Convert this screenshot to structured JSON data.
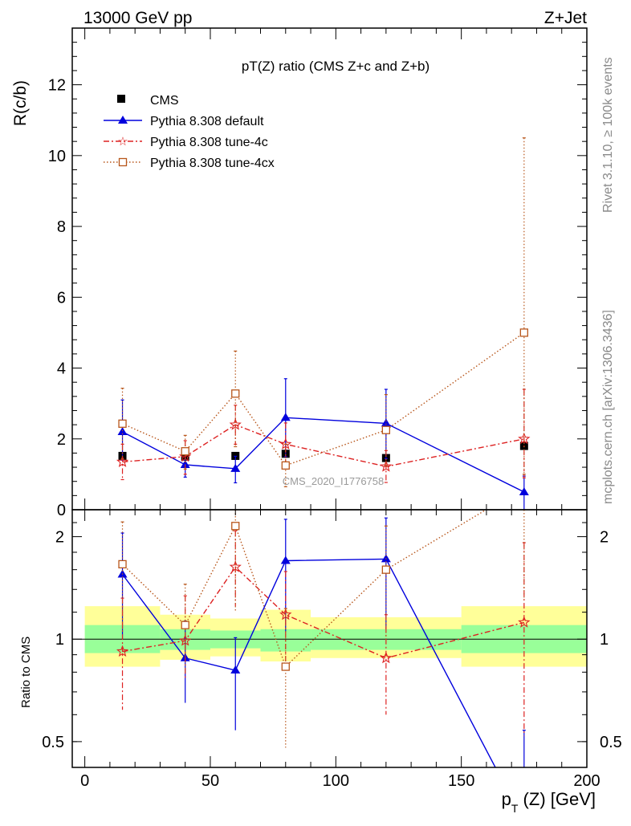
{
  "header": {
    "left": "13000 GeV pp",
    "right": "Z+Jet"
  },
  "side_labels": {
    "top": "Rivet 3.1.10, ≥ 100k events",
    "bottom": "mcplots.cern.ch [arXiv:1306.3436]"
  },
  "chart_data": [
    {
      "type": "line",
      "title": "pT(Z) ratio (CMS  Z+c and Z+b)",
      "watermark": "CMS_2020_I1776758",
      "xlabel": "p_T (Z) [GeV]",
      "ylabel": "R(c/b)",
      "xlim": [
        -5,
        200
      ],
      "ylim": [
        0,
        13.6
      ],
      "xticks": [
        0,
        50,
        100,
        150,
        200
      ],
      "yticks": [
        0,
        2,
        4,
        6,
        8,
        10,
        12
      ],
      "bins": [
        [
          0,
          30
        ],
        [
          30,
          50
        ],
        [
          50,
          70
        ],
        [
          70,
          90
        ],
        [
          90,
          150
        ],
        [
          150,
          200
        ]
      ],
      "x": [
        15,
        40,
        60,
        80,
        120,
        175
      ],
      "legend_position": "top-left",
      "series": [
        {
          "name": "CMS",
          "style": "data",
          "color": "#000000",
          "values": [
            1.52,
            1.5,
            1.52,
            1.58,
            1.46,
            1.8
          ]
        },
        {
          "name": "Pythia 8.308 default",
          "style": "solid",
          "marker": "triangle",
          "color": "#0000dd",
          "values": [
            2.2,
            1.27,
            1.16,
            2.6,
            2.44,
            0.5
          ],
          "err_low": [
            0.8,
            0.35,
            0.4,
            1.1,
            1.0,
            0.5
          ],
          "err_high": [
            0.9,
            0.3,
            0.35,
            1.1,
            0.96,
            0.45
          ]
        },
        {
          "name": "Pythia 8.308 tune-4c",
          "style": "dashdot",
          "marker": "star",
          "color": "#dd2222",
          "values": [
            1.35,
            1.5,
            2.4,
            1.85,
            1.22,
            2.0
          ],
          "err_low": [
            0.5,
            0.5,
            0.55,
            0.6,
            0.45,
            1.1
          ],
          "err_high": [
            0.5,
            0.45,
            0.55,
            0.6,
            0.45,
            1.4
          ]
        },
        {
          "name": "Pythia 8.308 tune-4cx",
          "style": "dotted",
          "marker": "open-square",
          "color": "#b8561b",
          "values": [
            2.43,
            1.65,
            3.28,
            1.25,
            2.25,
            5.0
          ],
          "err_low": [
            1.0,
            0.5,
            1.5,
            0.6,
            1.0,
            4.0
          ],
          "err_high": [
            1.0,
            0.45,
            1.2,
            0.6,
            1.0,
            5.5
          ]
        }
      ]
    },
    {
      "type": "line",
      "ylabel": "Ratio to CMS",
      "yscale": "log",
      "ylim": [
        0.42,
        2.4
      ],
      "yticks": [
        0.5,
        1,
        2
      ],
      "xlim": [
        -5,
        200
      ],
      "x": [
        15,
        40,
        60,
        80,
        120,
        175
      ],
      "bands": {
        "inner_color": "#99ff99",
        "outer_color": "#ffff99",
        "inner_low": [
          0.91,
          0.93,
          0.94,
          0.92,
          0.93,
          0.91
        ],
        "inner_high": [
          1.1,
          1.07,
          1.06,
          1.07,
          1.07,
          1.1
        ],
        "outer_low": [
          0.83,
          0.87,
          0.89,
          0.86,
          0.88,
          0.83
        ],
        "outer_high": [
          1.25,
          1.18,
          1.15,
          1.22,
          1.16,
          1.25
        ]
      },
      "series": [
        {
          "name": "Pythia 8.308 default",
          "color": "#0000dd",
          "values": [
            1.55,
            0.88,
            0.81,
            1.7,
            1.72,
            0.29
          ],
          "err_low": [
            0.55,
            0.23,
            0.27,
            0.65,
            0.65,
            0.29
          ],
          "err_high": [
            0.5,
            0.25,
            0.2,
            0.55,
            0.55,
            0.25
          ]
        },
        {
          "name": "Pythia 8.308 tune-4c",
          "color": "#dd2222",
          "values": [
            0.92,
            0.99,
            1.63,
            1.18,
            0.88,
            1.12
          ],
          "err_low": [
            0.3,
            0.23,
            0.38,
            0.35,
            0.28,
            0.6
          ],
          "err_high": [
            0.4,
            0.35,
            0.45,
            0.4,
            0.3,
            0.8
          ]
        },
        {
          "name": "Pythia 8.308 tune-4cx",
          "color": "#b8561b",
          "values": [
            1.66,
            1.1,
            2.15,
            0.83,
            1.6,
            2.8
          ],
          "err_low": [
            0.6,
            0.3,
            0.95,
            0.35,
            0.6,
            1.5
          ],
          "err_high": [
            0.55,
            0.35,
            0.5,
            0.4,
            0.55,
            3.0
          ]
        }
      ]
    }
  ]
}
